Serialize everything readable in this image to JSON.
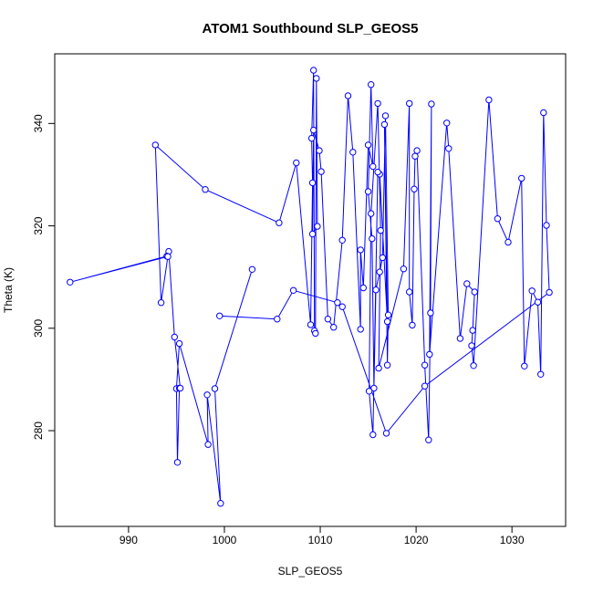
{
  "chart_data": {
    "type": "line",
    "title": "ATOM1 Southbound SLP_GEOS5",
    "xlabel": "SLP_GEOS5",
    "ylabel": "Theta (K)",
    "xlim": [
      982.3,
      1035.6
    ],
    "ylim": [
      261.3,
      353.6
    ],
    "xticks": [
      990,
      1000,
      1010,
      1020,
      1030
    ],
    "yticks": [
      280,
      300,
      320,
      340
    ],
    "grid": false,
    "legend": "none",
    "line_color": "#0000ff",
    "marker": "open-circle",
    "series": [
      {
        "x": [
          1002.9,
          999.0,
          999.6,
          998.2,
          998.3,
          995.3,
          995.0,
          995.1,
          995.3,
          995.4,
          994.8,
          994.2,
          994.0,
          983.9,
          994.1,
          993.4,
          992.8,
          998.0,
          1005.7,
          1007.5,
          1009.0,
          1009.2,
          1009.1,
          1009.3,
          1009.4,
          1009.5,
          1009.6,
          1009.7,
          1009.2,
          1009.3,
          1009.9,
          1010.1,
          1010.8,
          1011.4,
          1012.3,
          1012.9,
          1013.4,
          1014.2,
          1014.2,
          1014.5,
          1015.0,
          1015.5,
          1015.3,
          1015.0,
          1015.4,
          1015.6,
          1015.8,
          1016.2,
          1016.5,
          1016.8,
          1017.1,
          1017.0,
          1016.7,
          1017.0,
          1016.2,
          1016.0,
          1015.5,
          1015.1,
          1015.3,
          1016.0,
          1016.3,
          1016.1,
          1018.7,
          1019.3,
          1019.3,
          1019.6,
          1019.8,
          1019.9,
          1020.1,
          1020.9,
          1021.3,
          1021.5,
          1021.6,
          1021.4,
          1023.2,
          1023.4,
          1024.6,
          1025.3,
          1026.1,
          1025.9,
          1025.8,
          1026.0,
          1027.6,
          1028.5,
          1029.6,
          1031.0,
          1031.3,
          1032.1,
          1032.7,
          1033.0,
          1033.3,
          1033.6,
          1033.9,
          1020.9,
          1016.9,
          1012.3,
          1011.8,
          1007.2,
          1005.5,
          999.5
        ],
        "y": [
          311.5,
          288.2,
          265.8,
          287.0,
          277.3,
          297.0,
          288.2,
          273.8,
          288.3,
          288.3,
          298.3,
          315.0,
          314.1,
          309.0,
          314.0,
          305.0,
          335.8,
          327.1,
          320.6,
          332.3,
          300.7,
          328.4,
          337.1,
          350.4,
          299.5,
          299.0,
          348.8,
          319.9,
          318.4,
          338.7,
          334.7,
          330.6,
          301.8,
          300.2,
          317.2,
          345.4,
          334.4,
          299.8,
          315.3,
          307.9,
          335.8,
          331.6,
          347.6,
          326.7,
          317.5,
          288.3,
          307.5,
          311.0,
          313.8,
          341.5,
          302.6,
          292.8,
          339.8,
          301.3,
          330.1,
          330.5,
          279.2,
          287.7,
          322.4,
          343.9,
          319.1,
          292.2,
          311.6,
          343.9,
          307.1,
          300.6,
          327.2,
          333.6,
          334.7,
          292.8,
          278.2,
          303.0,
          343.8,
          294.9,
          340.1,
          335.1,
          298.0,
          308.7,
          307.1,
          299.6,
          296.6,
          292.7,
          344.6,
          321.4,
          316.8,
          329.3,
          292.6,
          307.3,
          305.1,
          291.0,
          342.1,
          320.1,
          307.0,
          288.7,
          279.5,
          304.2,
          305.0,
          307.4,
          301.8,
          302.4
        ]
      }
    ]
  }
}
